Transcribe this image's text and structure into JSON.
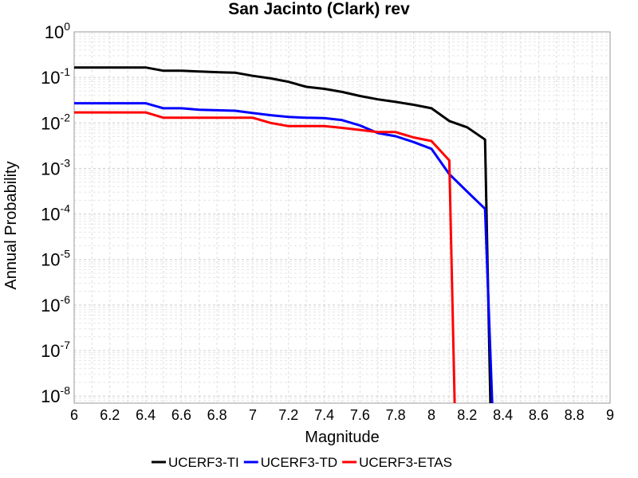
{
  "chart_data": {
    "type": "line",
    "title": "San Jacinto (Clark) rev",
    "xlabel": "Magnitude",
    "ylabel": "Annual Probability",
    "xlim": [
      6,
      9
    ],
    "x_ticks": [
      "6",
      "6.2",
      "6.4",
      "6.6",
      "6.8",
      "7",
      "7.2",
      "7.4",
      "7.6",
      "7.8",
      "8",
      "8.2",
      "8.4",
      "8.6",
      "8.8",
      "9"
    ],
    "y_scale": "log",
    "ylim": [
      7e-09,
      1
    ],
    "y_ticks": [
      {
        "base": "10",
        "exp": "0"
      },
      {
        "base": "10",
        "exp": "-1"
      },
      {
        "base": "10",
        "exp": "-2"
      },
      {
        "base": "10",
        "exp": "-3"
      },
      {
        "base": "10",
        "exp": "-4"
      },
      {
        "base": "10",
        "exp": "-5"
      },
      {
        "base": "10",
        "exp": "-6"
      },
      {
        "base": "10",
        "exp": "-7"
      },
      {
        "base": "10",
        "exp": "-8"
      }
    ],
    "grid": true,
    "legend_position": "bottom",
    "series": [
      {
        "name": "UCERF3-TI",
        "color": "#000000",
        "x": [
          6.0,
          6.1,
          6.2,
          6.3,
          6.4,
          6.5,
          6.6,
          6.7,
          6.8,
          6.9,
          7.0,
          7.1,
          7.2,
          7.3,
          7.4,
          7.5,
          7.6,
          7.7,
          7.8,
          7.9,
          8.0,
          8.1,
          8.2,
          8.3,
          8.33,
          8.34
        ],
        "y": [
          0.165,
          0.165,
          0.165,
          0.165,
          0.165,
          0.14,
          0.14,
          0.135,
          0.13,
          0.127,
          0.108,
          0.095,
          0.08,
          0.062,
          0.056,
          0.048,
          0.039,
          0.033,
          0.029,
          0.025,
          0.021,
          0.011,
          0.008,
          0.0043,
          7e-09,
          7e-09
        ]
      },
      {
        "name": "UCERF3-TD",
        "color": "#0000ff",
        "x": [
          6.0,
          6.1,
          6.2,
          6.3,
          6.4,
          6.5,
          6.6,
          6.7,
          6.8,
          6.9,
          7.0,
          7.1,
          7.2,
          7.3,
          7.4,
          7.5,
          7.6,
          7.7,
          7.8,
          7.9,
          8.0,
          8.1,
          8.2,
          8.3,
          8.34
        ],
        "y": [
          0.027,
          0.027,
          0.027,
          0.027,
          0.027,
          0.021,
          0.021,
          0.0195,
          0.019,
          0.0185,
          0.0165,
          0.0148,
          0.0135,
          0.013,
          0.0128,
          0.0115,
          0.0088,
          0.006,
          0.0051,
          0.0038,
          0.0027,
          0.00075,
          0.00031,
          0.00013,
          7e-09
        ]
      },
      {
        "name": "UCERF3-ETAS",
        "color": "#ff0000",
        "x": [
          6.0,
          6.1,
          6.2,
          6.3,
          6.4,
          6.5,
          6.6,
          6.7,
          6.8,
          6.9,
          7.0,
          7.1,
          7.2,
          7.3,
          7.4,
          7.5,
          7.6,
          7.7,
          7.8,
          7.9,
          8.0,
          8.1,
          8.13
        ],
        "y": [
          0.017,
          0.017,
          0.017,
          0.017,
          0.017,
          0.013,
          0.013,
          0.013,
          0.013,
          0.013,
          0.013,
          0.01,
          0.0085,
          0.0085,
          0.0085,
          0.0078,
          0.007,
          0.0063,
          0.0063,
          0.0048,
          0.004,
          0.0015,
          7e-09
        ]
      }
    ]
  }
}
